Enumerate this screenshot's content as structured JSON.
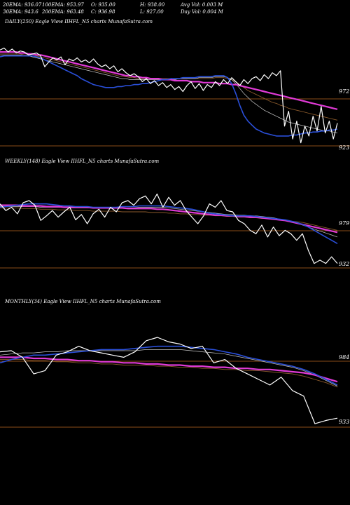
{
  "header": {
    "row1": [
      "20EMA: 936.07",
      "100EMA: 953.97",
      "O: 935.00",
      "H: 938.00",
      "Avg Vol: 0.003 M"
    ],
    "row2": [
      "30EMA: 943.6",
      "200EMA: 963.48",
      "C: 936.98",
      "L: 927.00",
      "Day Vol: 0.004 M"
    ]
  },
  "colors": {
    "background": "#000000",
    "price": "#ffffff",
    "ema_fast": "#2a4fd9",
    "ema_slow": "#e03ad6",
    "level": "#b8641f",
    "ema_thin": "#c8c8c8",
    "ema_brown": "#8b5a2b"
  },
  "chart_data": [
    {
      "type": "line",
      "title": "DAILY(250) Eagle  View  IIHFL_N5 charts MunafaSutra.com",
      "levels": [
        "972",
        "923"
      ],
      "series": [
        {
          "role": "price",
          "values": [
            1002,
            1004,
            1000,
            1003,
            999,
            1001,
            1000,
            997,
            998,
            999,
            996,
            985,
            990,
            994,
            992,
            995,
            987,
            993,
            991,
            994,
            990,
            992,
            989,
            993,
            988,
            985,
            987,
            983,
            986,
            980,
            983,
            979,
            976,
            978,
            975,
            970,
            973,
            968,
            971,
            966,
            969,
            964,
            967,
            962,
            965,
            960,
            966,
            970,
            963,
            968,
            961,
            967,
            964,
            970,
            966,
            972,
            968,
            974,
            970,
            966,
            972,
            968,
            973,
            975,
            971,
            977,
            973,
            979,
            976,
            981,
            925,
            940,
            912,
            930,
            908,
            925,
            915,
            935,
            920,
            945,
            918,
            930,
            912,
            928
          ]
        },
        {
          "role": "ema-blue",
          "values": [
            995,
            996,
            996,
            996,
            996,
            996,
            996,
            996,
            996,
            995,
            994,
            992,
            990,
            988,
            986,
            984,
            982,
            980,
            978,
            976,
            973,
            971,
            969,
            967,
            966,
            965,
            964,
            964,
            964,
            965,
            965,
            966,
            966,
            967,
            967,
            968,
            968,
            969,
            970,
            971,
            972,
            972,
            973,
            973,
            973,
            974,
            974,
            974,
            974,
            975,
            975,
            975,
            975,
            976,
            976,
            976,
            974,
            968,
            958,
            946,
            936,
            930,
            926,
            922,
            920,
            918,
            917,
            916,
            915,
            915,
            915,
            915,
            916,
            916,
            917,
            918,
            918,
            919,
            919,
            920,
            920,
            921,
            921,
            922
          ]
        },
        {
          "role": "ema-magenta",
          "values": [
            1000,
            1000,
            1000,
            1000,
            1000,
            999,
            999,
            998,
            998,
            997,
            997,
            996,
            995,
            994,
            993,
            992,
            991,
            990,
            989,
            988,
            987,
            986,
            985,
            984,
            983,
            982,
            981,
            980,
            979,
            978,
            977,
            976,
            976,
            975,
            975,
            974,
            974,
            973,
            973,
            973,
            972,
            972,
            972,
            971,
            971,
            971,
            971,
            970,
            970,
            970,
            969,
            969,
            969,
            969,
            968,
            968,
            968,
            967,
            967,
            966,
            965,
            964,
            963,
            962,
            961,
            960,
            959,
            958,
            957,
            956,
            955,
            954,
            953,
            952,
            951,
            950,
            949,
            948,
            947,
            946,
            945,
            944,
            943,
            942
          ]
        },
        {
          "role": "ema-thin",
          "values": [
            997,
            997,
            997,
            997,
            997,
            997,
            996,
            996,
            995,
            994,
            993,
            992,
            991,
            990,
            989,
            988,
            987,
            986,
            985,
            984,
            983,
            982,
            981,
            980,
            979,
            978,
            977,
            976,
            975,
            974,
            973,
            973,
            972,
            972,
            972,
            972,
            972,
            972,
            972,
            972,
            972,
            972,
            972,
            972,
            973,
            973,
            973,
            973,
            973,
            974,
            974,
            974,
            974,
            975,
            975,
            975,
            974,
            972,
            968,
            963,
            958,
            954,
            950,
            947,
            944,
            941,
            939,
            937,
            935,
            933,
            931,
            929,
            928,
            927,
            926,
            925,
            924,
            923,
            922,
            921,
            920,
            920,
            919,
            918
          ]
        },
        {
          "role": "ema-brown",
          "values": [
            998,
            998,
            998,
            998,
            998,
            998,
            997,
            997,
            996,
            996,
            995,
            994,
            993,
            992,
            991,
            990,
            989,
            988,
            987,
            986,
            985,
            984,
            983,
            982,
            981,
            980,
            979,
            978,
            977,
            976,
            975,
            975,
            974,
            974,
            973,
            973,
            973,
            973,
            973,
            973,
            973,
            973,
            973,
            973,
            973,
            973,
            973,
            973,
            973,
            973,
            973,
            973,
            973,
            974,
            974,
            974,
            973,
            972,
            970,
            967,
            964,
            961,
            959,
            957,
            955,
            953,
            951,
            949,
            948,
            946,
            945,
            943,
            942,
            941,
            940,
            939,
            938,
            937,
            936,
            935,
            934,
            933,
            932,
            931
          ]
        }
      ]
    },
    {
      "type": "line",
      "title": "WEEKLY(148) Eagle  View  IIHFL_N5 charts MunafaSutra.com",
      "levels": [
        "979",
        "932"
      ],
      "series": [
        {
          "role": "price",
          "values": [
            990,
            980,
            985,
            975,
            992,
            995,
            988,
            965,
            972,
            980,
            970,
            978,
            985,
            966,
            974,
            960,
            975,
            982,
            970,
            985,
            978,
            992,
            995,
            988,
            998,
            1002,
            990,
            1005,
            985,
            1000,
            988,
            995,
            980,
            970,
            960,
            972,
            990,
            985,
            995,
            980,
            978,
            965,
            960,
            950,
            945,
            958,
            940,
            955,
            942,
            950,
            945,
            935,
            945,
            920,
            900,
            905,
            900,
            910,
            900
          ]
        },
        {
          "role": "ema-blue",
          "values": [
            985,
            986,
            987,
            988,
            989,
            990,
            990,
            990,
            990,
            989,
            988,
            987,
            987,
            986,
            986,
            986,
            985,
            985,
            985,
            985,
            985,
            986,
            986,
            986,
            987,
            987,
            987,
            987,
            987,
            986,
            985,
            984,
            983,
            982,
            980,
            978,
            976,
            975,
            974,
            973,
            972,
            972,
            972,
            972,
            971,
            970,
            969,
            968,
            967,
            966,
            964,
            962,
            959,
            955,
            950,
            945,
            940,
            935,
            930
          ]
        },
        {
          "role": "ema-magenta",
          "values": [
            988,
            988,
            988,
            988,
            987,
            987,
            987,
            987,
            986,
            986,
            986,
            985,
            985,
            985,
            985,
            985,
            984,
            984,
            984,
            984,
            984,
            984,
            983,
            983,
            983,
            983,
            983,
            982,
            982,
            981,
            980,
            979,
            978,
            977,
            976,
            975,
            974,
            973,
            973,
            972,
            972,
            971,
            971,
            970,
            970,
            969,
            968,
            967,
            966,
            965,
            963,
            961,
            959,
            957,
            955,
            953,
            951,
            949,
            947
          ]
        },
        {
          "role": "ema-thin",
          "values": [
            986,
            986,
            986,
            986,
            986,
            986,
            986,
            985,
            985,
            985,
            985,
            985,
            984,
            984,
            984,
            984,
            984,
            984,
            984,
            984,
            984,
            984,
            984,
            984,
            985,
            985,
            985,
            985,
            985,
            984,
            983,
            982,
            981,
            980,
            979,
            978,
            977,
            976,
            975,
            974,
            974,
            973,
            973,
            972,
            972,
            971,
            970,
            969,
            967,
            965,
            963,
            961,
            958,
            955,
            952,
            949,
            946,
            943,
            940
          ]
        },
        {
          "role": "ema-brown",
          "values": [
            984,
            984,
            984,
            984,
            983,
            983,
            983,
            982,
            982,
            982,
            981,
            981,
            981,
            980,
            980,
            980,
            979,
            979,
            979,
            979,
            979,
            978,
            978,
            978,
            978,
            978,
            977,
            977,
            977,
            976,
            976,
            975,
            975,
            974,
            974,
            973,
            973,
            972,
            972,
            971,
            971,
            970,
            970,
            969,
            969,
            968,
            968,
            967,
            966,
            965,
            964,
            963,
            962,
            960,
            958,
            956,
            954,
            952,
            950
          ]
        }
      ]
    },
    {
      "type": "line",
      "title": "MONTHLY(34) Eagle  View  IIHFL_N5 charts MunafaSutra.com",
      "levels": [
        "984",
        "933"
      ],
      "series": [
        {
          "role": "price",
          "values": [
            995,
            996,
            990,
            975,
            978,
            992,
            995,
            1000,
            996,
            994,
            992,
            990,
            995,
            1005,
            1008,
            1004,
            1002,
            998,
            1000,
            985,
            988,
            980,
            975,
            970,
            965,
            972,
            960,
            955,
            930,
            933,
            935
          ]
        },
        {
          "role": "ema-blue",
          "values": [
            985,
            988,
            990,
            992,
            992,
            993,
            994,
            995,
            996,
            997,
            997,
            997,
            998,
            999,
            1000,
            1000,
            1000,
            999,
            998,
            997,
            995,
            993,
            990,
            988,
            986,
            984,
            982,
            979,
            975,
            970,
            965
          ]
        },
        {
          "role": "ema-magenta",
          "values": [
            990,
            990,
            990,
            989,
            989,
            988,
            988,
            987,
            987,
            986,
            986,
            985,
            985,
            984,
            984,
            983,
            983,
            982,
            982,
            981,
            981,
            980,
            980,
            979,
            979,
            978,
            977,
            976,
            974,
            971,
            968
          ]
        },
        {
          "role": "ema-thin",
          "values": [
            992,
            993,
            994,
            994,
            995,
            995,
            996,
            996,
            996,
            996,
            996,
            996,
            996,
            997,
            997,
            997,
            997,
            996,
            995,
            994,
            993,
            991,
            989,
            987,
            985,
            983,
            981,
            978,
            974,
            969,
            964
          ]
        },
        {
          "role": "ema-brown",
          "values": [
            988,
            988,
            988,
            987,
            987,
            986,
            986,
            985,
            985,
            984,
            984,
            983,
            983,
            983,
            982,
            982,
            981,
            981,
            980,
            980,
            979,
            979,
            978,
            978,
            977,
            976,
            975,
            973,
            970,
            967,
            963
          ]
        }
      ]
    }
  ]
}
